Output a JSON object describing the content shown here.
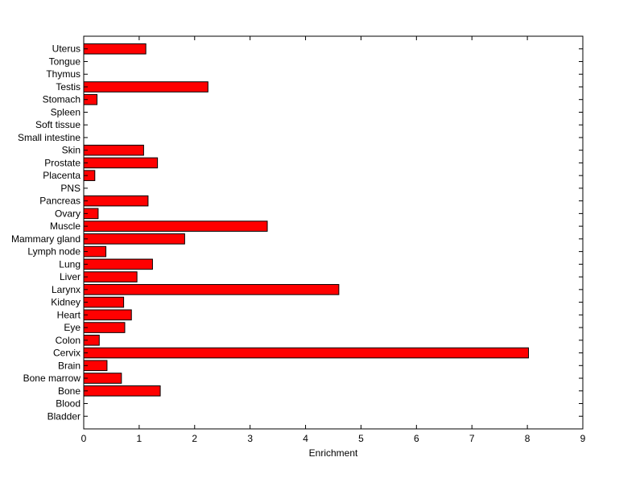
{
  "chart_data": {
    "type": "bar",
    "orientation": "horizontal",
    "title": "",
    "xlabel": "Enrichment",
    "ylabel": "",
    "xlim": [
      0,
      9
    ],
    "xticks": [
      0,
      1,
      2,
      3,
      4,
      5,
      6,
      7,
      8,
      9
    ],
    "grid": false,
    "bar_color": "#ff0000",
    "bar_edge_color": "#000000",
    "categories": [
      "Bladder",
      "Blood",
      "Bone",
      "Bone marrow",
      "Brain",
      "Cervix",
      "Colon",
      "Eye",
      "Heart",
      "Kidney",
      "Larynx",
      "Liver",
      "Lung",
      "Lymph node",
      "Mammary gland",
      "Muscle",
      "Ovary",
      "Pancreas",
      "PNS",
      "Placenta",
      "Prostate",
      "Skin",
      "Small intestine",
      "Soft tissue",
      "Spleen",
      "Stomach",
      "Testis",
      "Thymus",
      "Tongue",
      "Uterus"
    ],
    "values": [
      0,
      0,
      1.38,
      0.68,
      0.42,
      8.02,
      0.28,
      0.74,
      0.86,
      0.72,
      4.6,
      0.96,
      1.24,
      0.4,
      1.82,
      3.31,
      0.26,
      1.16,
      0,
      0.2,
      1.33,
      1.08,
      0,
      0,
      0,
      0.24,
      2.24,
      0,
      0,
      1.12
    ]
  }
}
